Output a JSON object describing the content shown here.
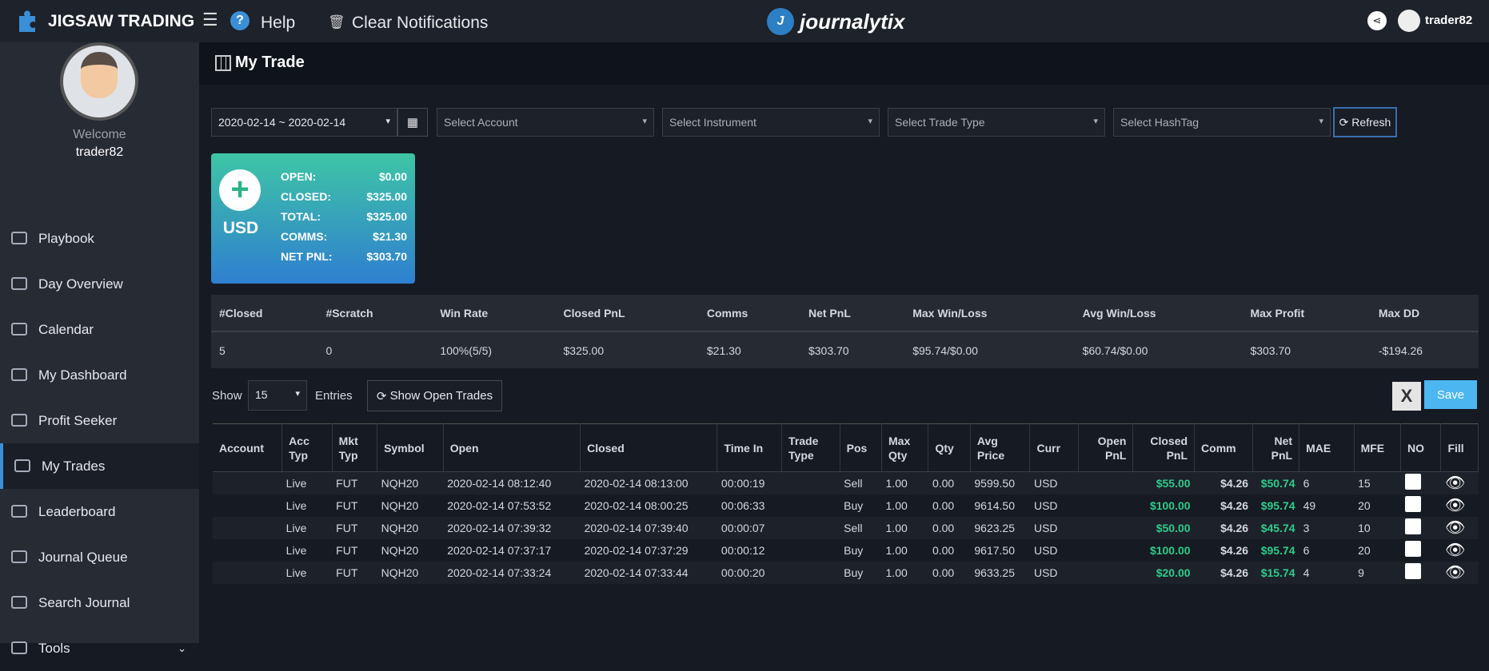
{
  "header": {
    "brand": "JIGSAW TRADING",
    "help": "Help",
    "clear": "Clear Notifications",
    "logo": "journalytix",
    "user": "trader82"
  },
  "sidebar": {
    "welcome": "Welcome",
    "username": "trader82",
    "menu": [
      "Playbook",
      "Day Overview",
      "Calendar",
      "My Dashboard",
      "Profit Seeker",
      "My Trades",
      "Leaderboard",
      "Journal Queue",
      "Search Journal",
      "Tools"
    ],
    "active": 5
  },
  "page_title": "My Trade",
  "filters": {
    "date": "2020-02-14 ~ 2020-02-14",
    "selects": [
      "Select Account",
      "Select Instrument",
      "Select Trade Type",
      "Select HashTag"
    ],
    "refresh": "Refresh"
  },
  "summary": {
    "currency": "USD",
    "rows": [
      {
        "label": "OPEN:",
        "value": "$0.00"
      },
      {
        "label": "CLOSED:",
        "value": "$325.00"
      },
      {
        "label": "TOTAL:",
        "value": "$325.00"
      },
      {
        "label": "COMMS:",
        "value": "$21.30"
      },
      {
        "label": "NET PNL:",
        "value": "$303.70"
      }
    ]
  },
  "stats": {
    "headers": [
      "#Closed",
      "#Scratch",
      "Win Rate",
      "Closed PnL",
      "Comms",
      "Net PnL",
      "Max Win/Loss",
      "Avg Win/Loss",
      "Max Profit",
      "Max DD"
    ],
    "values": [
      "5",
      "0",
      "100%(5/5)",
      "$325.00",
      "$21.30",
      "$303.70",
      "$95.74/$0.00",
      "$60.74/$0.00",
      "$303.70",
      "-$194.26"
    ]
  },
  "controls": {
    "show": "Show",
    "entries_count": "15",
    "entries": "Entries",
    "open_trades": "Show Open Trades",
    "save": "Save"
  },
  "trades": {
    "columns": [
      "Account",
      "Acc Typ",
      "Mkt Typ",
      "Symbol",
      "Open",
      "Closed",
      "Time In",
      "Trade Type",
      "Pos",
      "Max Qty",
      "Qty",
      "Avg Price",
      "Curr",
      "Open PnL",
      "Closed PnL",
      "Comm",
      "Net PnL",
      "MAE",
      "MFE",
      "NO",
      "Fill"
    ],
    "rows": [
      [
        null,
        "Live",
        "FUT",
        "NQH20",
        "2020-02-14 08:12:40",
        "2020-02-14 08:13:00",
        "00:00:19",
        null,
        "Sell",
        "1.00",
        "0.00",
        "9599.50",
        "USD",
        null,
        "$55.00",
        "$4.26",
        "$50.74",
        "6",
        "15"
      ],
      [
        null,
        "Live",
        "FUT",
        "NQH20",
        "2020-02-14 07:53:52",
        "2020-02-14 08:00:25",
        "00:06:33",
        null,
        "Buy",
        "1.00",
        "0.00",
        "9614.50",
        "USD",
        null,
        "$100.00",
        "$4.26",
        "$95.74",
        "49",
        "20"
      ],
      [
        null,
        "Live",
        "FUT",
        "NQH20",
        "2020-02-14 07:39:32",
        "2020-02-14 07:39:40",
        "00:00:07",
        null,
        "Sell",
        "1.00",
        "0.00",
        "9623.25",
        "USD",
        null,
        "$50.00",
        "$4.26",
        "$45.74",
        "3",
        "10"
      ],
      [
        null,
        "Live",
        "FUT",
        "NQH20",
        "2020-02-14 07:37:17",
        "2020-02-14 07:37:29",
        "00:00:12",
        null,
        "Buy",
        "1.00",
        "0.00",
        "9617.50",
        "USD",
        null,
        "$100.00",
        "$4.26",
        "$95.74",
        "6",
        "20"
      ],
      [
        null,
        "Live",
        "FUT",
        "NQH20",
        "2020-02-14 07:33:24",
        "2020-02-14 07:33:44",
        "00:00:20",
        null,
        "Buy",
        "1.00",
        "0.00",
        "9633.25",
        "USD",
        null,
        "$20.00",
        "$4.26",
        "$15.74",
        "4",
        "9"
      ]
    ]
  }
}
